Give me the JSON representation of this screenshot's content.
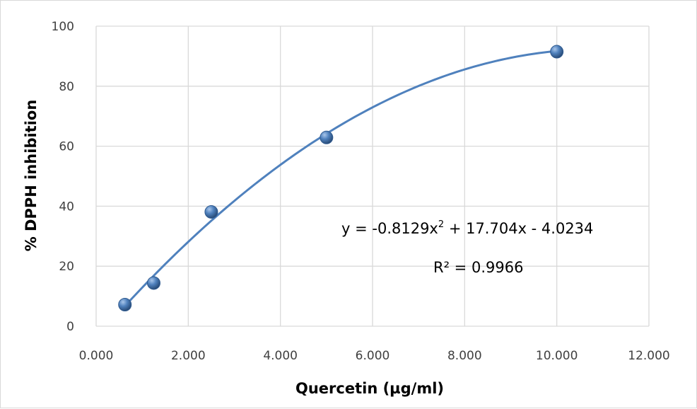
{
  "chart_data": {
    "type": "scatter",
    "xlabel": "Quercetin (µg/ml)",
    "ylabel": "% DPPH inhibition",
    "xlim": [
      0,
      12
    ],
    "ylim": [
      0,
      100
    ],
    "x_ticks": [
      "0.000",
      "2.000",
      "4.000",
      "6.000",
      "8.000",
      "10.000",
      "12.000"
    ],
    "y_ticks": [
      "0",
      "20",
      "40",
      "60",
      "80",
      "100"
    ],
    "grid": true,
    "legend": "none",
    "series": [
      {
        "points": [
          {
            "x": 0.625,
            "y": 7.2
          },
          {
            "x": 1.25,
            "y": 14.4
          },
          {
            "x": 2.5,
            "y": 38.1
          },
          {
            "x": 5.0,
            "y": 62.9
          },
          {
            "x": 10.0,
            "y": 91.5
          }
        ],
        "marker_color": "#4f81bd"
      }
    ],
    "trendline": {
      "type": "polynomial",
      "order": 2,
      "coefficients": [
        -0.8129,
        17.704,
        -4.0234
      ],
      "x_range": [
        0.625,
        10.0
      ],
      "color": "#4f81bd"
    },
    "annotations": {
      "equation_prefix": "y = -0.8129x",
      "equation_exponent": "2",
      "equation_suffix": " + 17.704x - 4.0234",
      "r_squared": "R² = 0.9966"
    }
  }
}
